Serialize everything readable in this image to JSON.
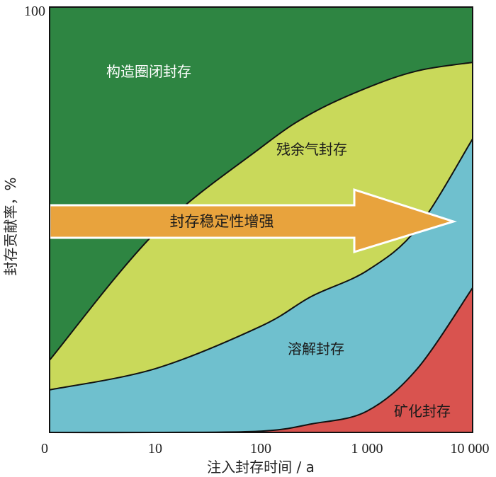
{
  "chart_data": {
    "type": "area",
    "xlabel": "注入封存时间 / a",
    "ylabel": "封存贡献率，%",
    "x_scale": "log",
    "x_ticks": [
      "0",
      "10",
      "100",
      "1 000",
      "10 000"
    ],
    "y_ticks": [
      "100"
    ],
    "ylim": [
      0,
      100
    ],
    "xlim": [
      1,
      10000
    ],
    "grid": false,
    "series": [
      {
        "name": "矿化封存",
        "color": "#d9534f",
        "x": [
          1,
          10,
          100,
          300,
          1000,
          3000,
          10000
        ],
        "values": [
          0,
          0,
          0.3,
          2,
          5,
          15,
          34
        ]
      },
      {
        "name": "溶解封存",
        "color": "#6fc0ce",
        "x": [
          1,
          10,
          100,
          300,
          1000,
          3000,
          10000
        ],
        "values": [
          10,
          15,
          25,
          32,
          38,
          48,
          69
        ]
      },
      {
        "name": "残余气封存",
        "color": "#c9d95a",
        "x": [
          1,
          10,
          100,
          300,
          1000,
          3000,
          10000
        ],
        "values": [
          17,
          47,
          67,
          75,
          81,
          85,
          87
        ]
      },
      {
        "name": "构造圈闭封存",
        "color": "#2e8542",
        "x": [
          1,
          10000
        ],
        "values": [
          100,
          100
        ]
      }
    ],
    "annotation": {
      "text": "封存稳定性增强",
      "color": "#e8a33d"
    }
  }
}
